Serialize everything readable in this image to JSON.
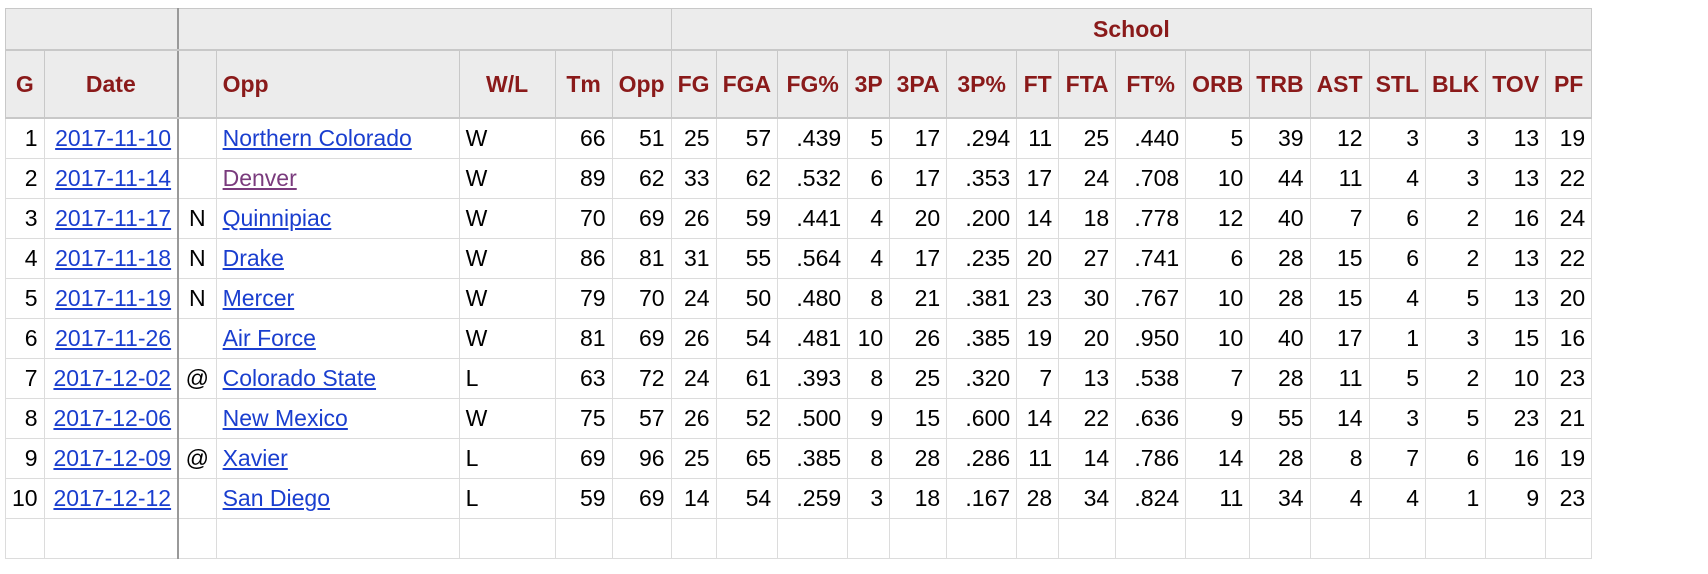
{
  "table": {
    "group_header": "School",
    "columns": [
      "G",
      "Date",
      "",
      "Opp",
      "W/L",
      "Tm",
      "Opp",
      "FG",
      "FGA",
      "FG%",
      "3P",
      "3PA",
      "3P%",
      "FT",
      "FTA",
      "FT%",
      "ORB",
      "TRB",
      "AST",
      "STL",
      "BLK",
      "TOV",
      "PF"
    ],
    "rows": [
      {
        "g": "1",
        "date": "2017-11-10",
        "loc": "",
        "opp": "Northern Colorado",
        "opp_visited": false,
        "wl": "W",
        "tm": "66",
        "opp_pts": "51",
        "fg": "25",
        "fga": "57",
        "fg_pct": ".439",
        "p3": "5",
        "pa3": "17",
        "p3_pct": ".294",
        "ft": "11",
        "fta": "25",
        "ft_pct": ".440",
        "orb": "5",
        "trb": "39",
        "ast": "12",
        "stl": "3",
        "blk": "3",
        "tov": "13",
        "pf": "19"
      },
      {
        "g": "2",
        "date": "2017-11-14",
        "loc": "",
        "opp": "Denver",
        "opp_visited": true,
        "wl": "W",
        "tm": "89",
        "opp_pts": "62",
        "fg": "33",
        "fga": "62",
        "fg_pct": ".532",
        "p3": "6",
        "pa3": "17",
        "p3_pct": ".353",
        "ft": "17",
        "fta": "24",
        "ft_pct": ".708",
        "orb": "10",
        "trb": "44",
        "ast": "11",
        "stl": "4",
        "blk": "3",
        "tov": "13",
        "pf": "22"
      },
      {
        "g": "3",
        "date": "2017-11-17",
        "loc": "N",
        "opp": "Quinnipiac",
        "opp_visited": false,
        "wl": "W",
        "tm": "70",
        "opp_pts": "69",
        "fg": "26",
        "fga": "59",
        "fg_pct": ".441",
        "p3": "4",
        "pa3": "20",
        "p3_pct": ".200",
        "ft": "14",
        "fta": "18",
        "ft_pct": ".778",
        "orb": "12",
        "trb": "40",
        "ast": "7",
        "stl": "6",
        "blk": "2",
        "tov": "16",
        "pf": "24"
      },
      {
        "g": "4",
        "date": "2017-11-18",
        "loc": "N",
        "opp": "Drake",
        "opp_visited": false,
        "wl": "W",
        "tm": "86",
        "opp_pts": "81",
        "fg": "31",
        "fga": "55",
        "fg_pct": ".564",
        "p3": "4",
        "pa3": "17",
        "p3_pct": ".235",
        "ft": "20",
        "fta": "27",
        "ft_pct": ".741",
        "orb": "6",
        "trb": "28",
        "ast": "15",
        "stl": "6",
        "blk": "2",
        "tov": "13",
        "pf": "22"
      },
      {
        "g": "5",
        "date": "2017-11-19",
        "loc": "N",
        "opp": "Mercer",
        "opp_visited": false,
        "wl": "W",
        "tm": "79",
        "opp_pts": "70",
        "fg": "24",
        "fga": "50",
        "fg_pct": ".480",
        "p3": "8",
        "pa3": "21",
        "p3_pct": ".381",
        "ft": "23",
        "fta": "30",
        "ft_pct": ".767",
        "orb": "10",
        "trb": "28",
        "ast": "15",
        "stl": "4",
        "blk": "5",
        "tov": "13",
        "pf": "20"
      },
      {
        "g": "6",
        "date": "2017-11-26",
        "loc": "",
        "opp": "Air Force",
        "opp_visited": false,
        "wl": "W",
        "tm": "81",
        "opp_pts": "69",
        "fg": "26",
        "fga": "54",
        "fg_pct": ".481",
        "p3": "10",
        "pa3": "26",
        "p3_pct": ".385",
        "ft": "19",
        "fta": "20",
        "ft_pct": ".950",
        "orb": "10",
        "trb": "40",
        "ast": "17",
        "stl": "1",
        "blk": "3",
        "tov": "15",
        "pf": "16"
      },
      {
        "g": "7",
        "date": "2017-12-02",
        "loc": "@",
        "opp": "Colorado State",
        "opp_visited": false,
        "wl": "L",
        "tm": "63",
        "opp_pts": "72",
        "fg": "24",
        "fga": "61",
        "fg_pct": ".393",
        "p3": "8",
        "pa3": "25",
        "p3_pct": ".320",
        "ft": "7",
        "fta": "13",
        "ft_pct": ".538",
        "orb": "7",
        "trb": "28",
        "ast": "11",
        "stl": "5",
        "blk": "2",
        "tov": "10",
        "pf": "23"
      },
      {
        "g": "8",
        "date": "2017-12-06",
        "loc": "",
        "opp": "New Mexico",
        "opp_visited": false,
        "wl": "W",
        "tm": "75",
        "opp_pts": "57",
        "fg": "26",
        "fga": "52",
        "fg_pct": ".500",
        "p3": "9",
        "pa3": "15",
        "p3_pct": ".600",
        "ft": "14",
        "fta": "22",
        "ft_pct": ".636",
        "orb": "9",
        "trb": "55",
        "ast": "14",
        "stl": "3",
        "blk": "5",
        "tov": "23",
        "pf": "21"
      },
      {
        "g": "9",
        "date": "2017-12-09",
        "loc": "@",
        "opp": "Xavier",
        "opp_visited": false,
        "wl": "L",
        "tm": "69",
        "opp_pts": "96",
        "fg": "25",
        "fga": "65",
        "fg_pct": ".385",
        "p3": "8",
        "pa3": "28",
        "p3_pct": ".286",
        "ft": "11",
        "fta": "14",
        "ft_pct": ".786",
        "orb": "14",
        "trb": "28",
        "ast": "8",
        "stl": "7",
        "blk": "6",
        "tov": "16",
        "pf": "19"
      },
      {
        "g": "10",
        "date": "2017-12-12",
        "loc": "",
        "opp": "San Diego",
        "opp_visited": false,
        "wl": "L",
        "tm": "59",
        "opp_pts": "69",
        "fg": "14",
        "fga": "54",
        "fg_pct": ".259",
        "p3": "3",
        "pa3": "18",
        "p3_pct": ".167",
        "ft": "28",
        "fta": "34",
        "ft_pct": ".824",
        "orb": "11",
        "trb": "34",
        "ast": "4",
        "stl": "4",
        "blk": "1",
        "tov": "9",
        "pf": "23"
      }
    ]
  },
  "colors": {
    "header_text": "#8a1a1a",
    "header_bg": "#ececec",
    "link": "#1a3ecf",
    "visited_link": "#7a3b7d"
  }
}
